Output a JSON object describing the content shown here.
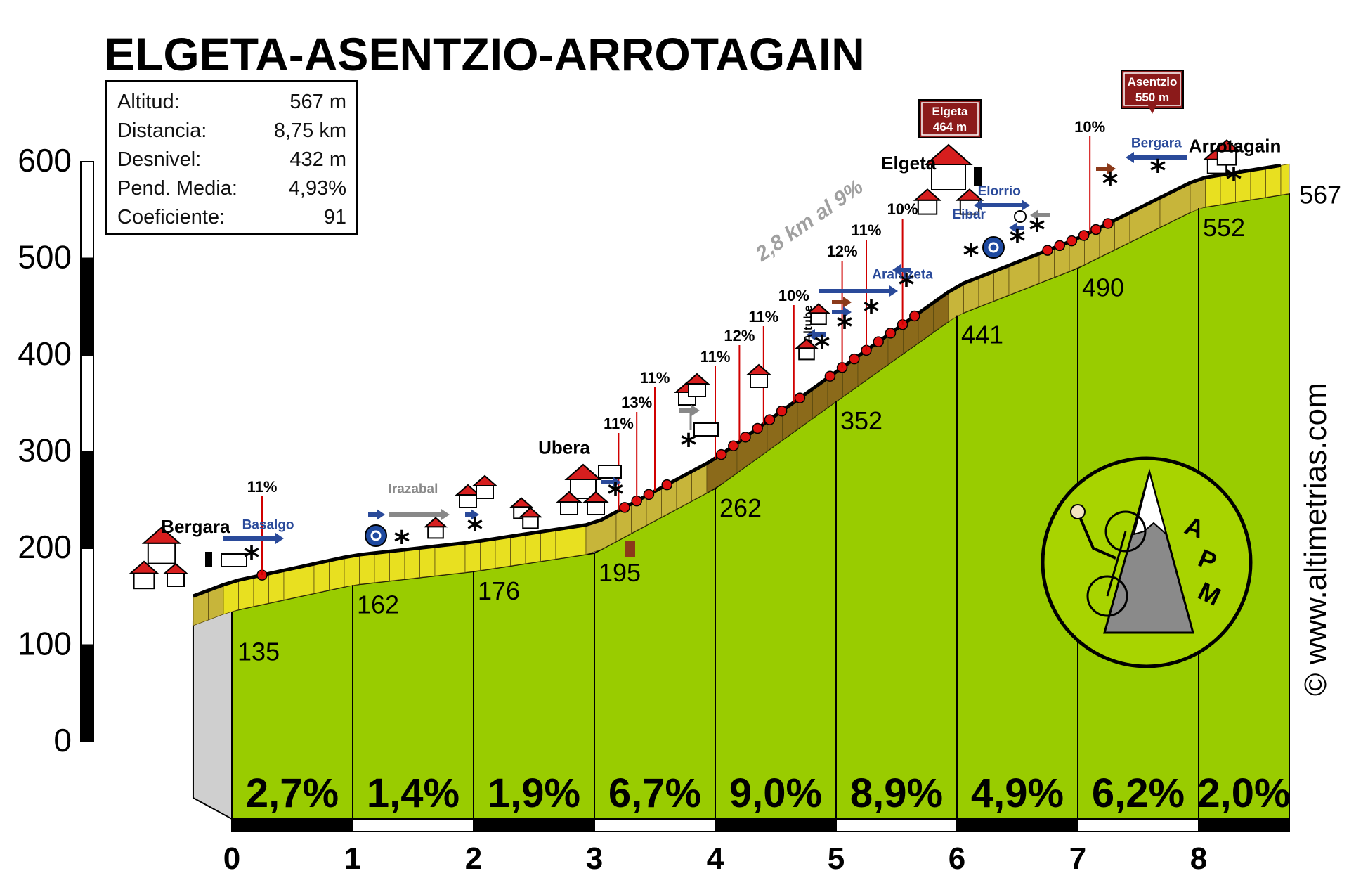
{
  "chart_data": {
    "type": "area",
    "title": "ELGETA-ASENTZIO-ARROTAGAIN",
    "stats": [
      {
        "label": "Altitud:",
        "value": "567 m"
      },
      {
        "label": "Distancia:",
        "value": "8,75 km"
      },
      {
        "label": "Desnivel:",
        "value": "432 m"
      },
      {
        "label": "Pend. Media:",
        "value": "4,93%"
      },
      {
        "label": "Coeficiente:",
        "value": "91"
      }
    ],
    "xlim": [
      0,
      8.75
    ],
    "ylim": [
      0,
      600
    ],
    "x_ticks": [
      "0",
      "1",
      "2",
      "3",
      "4",
      "5",
      "6",
      "7",
      "8"
    ],
    "y_ticks": [
      "0",
      "100",
      "200",
      "300",
      "400",
      "500",
      "600"
    ],
    "km_points": [
      {
        "km": 0,
        "alt": 135,
        "label": "135"
      },
      {
        "km": 1,
        "alt": 162,
        "label": "162"
      },
      {
        "km": 2,
        "alt": 176,
        "label": "176"
      },
      {
        "km": 3,
        "alt": 195,
        "label": "195"
      },
      {
        "km": 4,
        "alt": 262,
        "label": "262"
      },
      {
        "km": 5,
        "alt": 352,
        "label": "352"
      },
      {
        "km": 6,
        "alt": 441,
        "label": "441"
      },
      {
        "km": 7,
        "alt": 490,
        "label": "490"
      },
      {
        "km": 8,
        "alt": 552,
        "label": "552"
      },
      {
        "km": 8.75,
        "alt": 567,
        "label": "567"
      }
    ],
    "segment_gradients": [
      "2,7%",
      "1,4%",
      "1,9%",
      "6,7%",
      "9,0%",
      "8,9%",
      "4,9%",
      "6,2%",
      "2,0%"
    ],
    "steep_labels": [
      {
        "km": 0.25,
        "text": "11%"
      },
      {
        "km": 3.2,
        "text": "11%"
      },
      {
        "km": 3.35,
        "text": "13%"
      },
      {
        "km": 3.5,
        "text": "11%"
      },
      {
        "km": 4.0,
        "text": "11%"
      },
      {
        "km": 4.2,
        "text": "12%"
      },
      {
        "km": 4.4,
        "text": "11%"
      },
      {
        "km": 4.65,
        "text": "10%"
      },
      {
        "km": 5.05,
        "text": "12%"
      },
      {
        "km": 5.25,
        "text": "11%"
      },
      {
        "km": 5.55,
        "text": "10%"
      },
      {
        "km": 7.1,
        "text": "10%"
      }
    ],
    "places": [
      {
        "km": -0.3,
        "alt": 216,
        "name": "Bergara"
      },
      {
        "km": 2.75,
        "alt": 298,
        "name": "Ubera"
      },
      {
        "km": 5.6,
        "alt": 592,
        "name": "Elgeta"
      },
      {
        "km": 8.3,
        "alt": 610,
        "name": "Arrotagain"
      }
    ],
    "direction_labels": [
      {
        "km": 0.3,
        "alt": 220,
        "text": "Basalgo",
        "color": "#2a4a9a"
      },
      {
        "km": 1.5,
        "alt": 257,
        "text": "Irazabal",
        "color": "#8a8a8a"
      },
      {
        "km": 5.55,
        "alt": 479,
        "text": "Arantzeta",
        "color": "#2a4a9a"
      },
      {
        "km": 6.1,
        "alt": 541,
        "text": "Eibar",
        "color": "#2a4a9a"
      },
      {
        "km": 6.35,
        "alt": 565,
        "text": "Elorrio",
        "color": "#2a4a9a"
      },
      {
        "km": 7.65,
        "alt": 615,
        "text": "Bergara",
        "color": "#2a4a9a"
      }
    ],
    "side_labels": [
      {
        "km": 4.8,
        "alt": 413,
        "text": "Altube"
      },
      {
        "km": 5.2,
        "alt": 598,
        "text": "2,8 km al 9%"
      }
    ],
    "passes": [
      {
        "km": 5.65,
        "name": "Elgeta",
        "alt_text": "464 m"
      },
      {
        "km": 7.7,
        "name": "Asentzio",
        "alt_text": "550 m"
      }
    ],
    "logo_text": [
      "A",
      "P",
      "M"
    ],
    "credit": "© www.altimetrias.com",
    "colors": {
      "flat": "#e8e020",
      "medium": "#c7b53a",
      "steep": "#8b6a1a",
      "verysteep": "#7a3a12",
      "wall": "#99cc00",
      "pass": "#8b1a1a"
    }
  }
}
